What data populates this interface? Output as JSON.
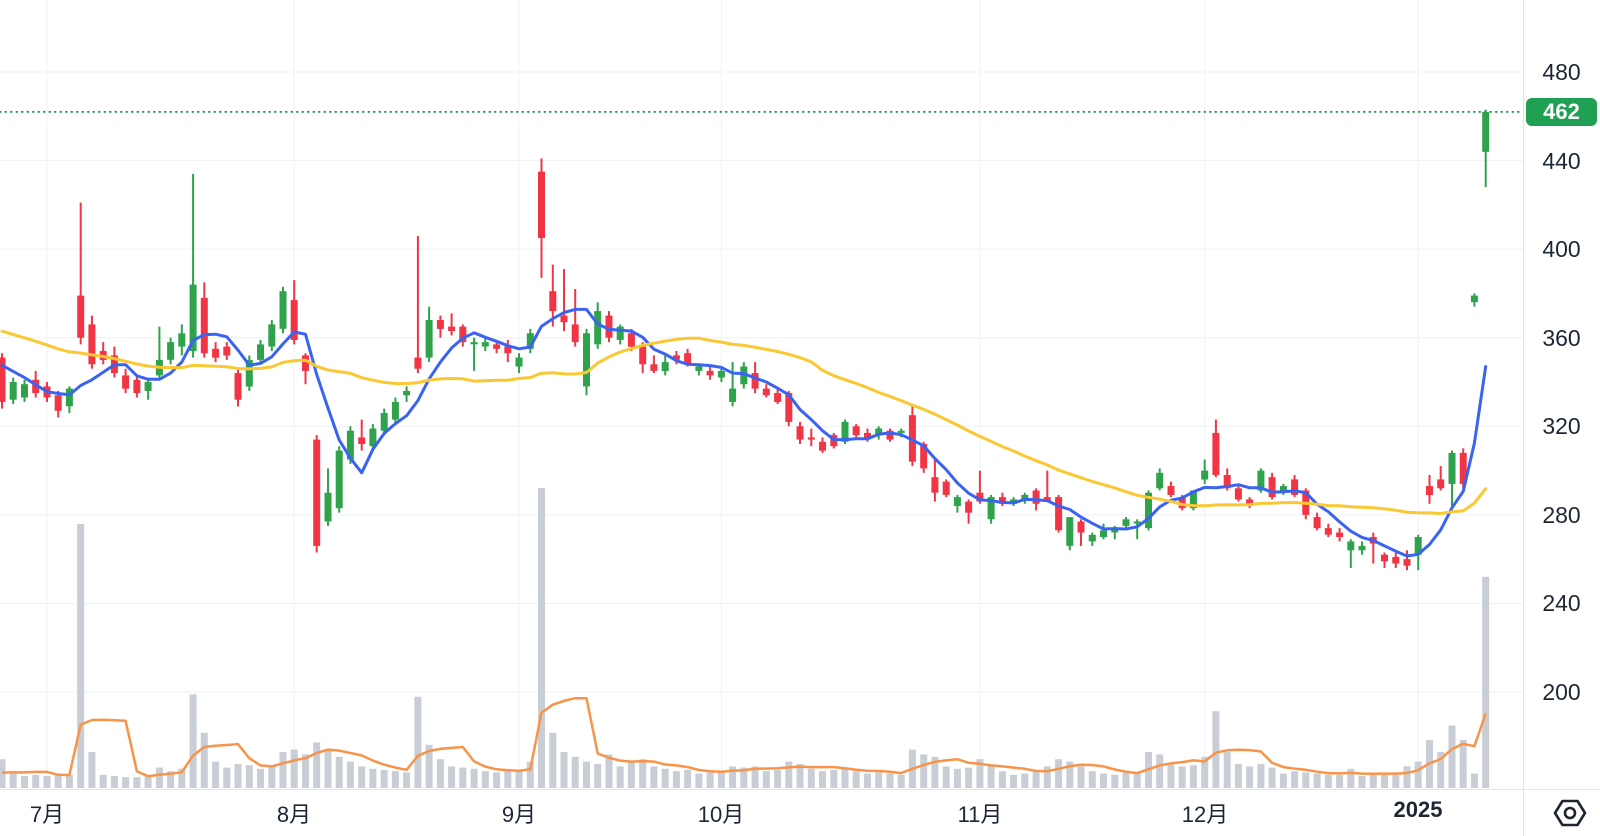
{
  "chart_data": {
    "type": "candlestick",
    "instrument_note": "daily candlestick chart with volume pane",
    "current_price": 462,
    "current_price_label": "462",
    "price_axis_ticks": [
      480,
      440,
      400,
      360,
      320,
      280,
      240,
      200
    ],
    "ylim": [
      200,
      480
    ],
    "grid": true,
    "x_axis_labels": [
      {
        "label": "7月",
        "candle_index": 4,
        "bold": false
      },
      {
        "label": "8月",
        "candle_index": 26,
        "bold": false
      },
      {
        "label": "9月",
        "candle_index": 46,
        "bold": false
      },
      {
        "label": "10月",
        "candle_index": 64,
        "bold": false
      },
      {
        "label": "11月",
        "candle_index": 87,
        "bold": false
      },
      {
        "label": "12月",
        "candle_index": 107,
        "bold": false
      },
      {
        "label": "2025",
        "candle_index": 126,
        "bold": true
      }
    ],
    "ohlcv_format": [
      "open",
      "high",
      "low",
      "close",
      "volume"
    ],
    "candles": [
      [
        351,
        353,
        328,
        331,
        120
      ],
      [
        332,
        342,
        330,
        340,
        60
      ],
      [
        333,
        341,
        331,
        339,
        50
      ],
      [
        341,
        345,
        333,
        335,
        55
      ],
      [
        338,
        340,
        331,
        333,
        50
      ],
      [
        334,
        336,
        324,
        327,
        60
      ],
      [
        329,
        338,
        326,
        337,
        55
      ],
      [
        379,
        421,
        357,
        360,
        1100
      ],
      [
        366,
        370,
        346,
        348,
        150
      ],
      [
        354,
        358,
        348,
        350,
        55
      ],
      [
        352,
        356,
        342,
        344,
        50
      ],
      [
        343,
        346,
        335,
        337,
        45
      ],
      [
        341,
        343,
        333,
        335,
        45
      ],
      [
        336,
        342,
        332,
        340,
        50
      ],
      [
        343,
        365,
        342,
        350,
        85
      ],
      [
        350,
        360,
        348,
        358,
        70
      ],
      [
        356,
        366,
        352,
        362,
        80
      ],
      [
        354,
        434,
        351,
        384,
        390
      ],
      [
        378,
        385,
        351,
        353,
        230
      ],
      [
        355,
        358,
        349,
        351,
        110
      ],
      [
        356,
        358,
        350,
        352,
        85
      ],
      [
        344,
        346,
        329,
        332,
        100
      ],
      [
        338,
        352,
        336,
        350,
        95
      ],
      [
        350,
        359,
        348,
        357,
        80
      ],
      [
        356,
        368,
        354,
        366,
        90
      ],
      [
        364,
        383,
        362,
        381,
        150
      ],
      [
        377,
        386,
        357,
        359,
        160
      ],
      [
        352,
        353,
        339,
        345,
        140
      ],
      [
        314,
        316,
        263,
        266,
        190
      ],
      [
        277,
        301,
        275,
        290,
        160
      ],
      [
        283,
        311,
        281,
        309,
        130
      ],
      [
        305,
        320,
        303,
        318,
        110
      ],
      [
        315,
        323,
        309,
        312,
        90
      ],
      [
        311,
        321,
        309,
        319,
        80
      ],
      [
        318,
        328,
        316,
        326,
        75
      ],
      [
        323,
        333,
        321,
        331,
        70
      ],
      [
        334,
        338,
        331,
        336,
        65
      ],
      [
        351,
        406,
        344,
        346,
        380
      ],
      [
        351,
        374,
        349,
        368,
        180
      ],
      [
        368,
        370,
        360,
        364,
        120
      ],
      [
        365,
        371,
        361,
        363,
        90
      ],
      [
        365,
        366,
        356,
        358,
        85
      ],
      [
        357,
        360,
        345,
        358,
        80
      ],
      [
        356,
        360,
        354,
        358,
        70
      ],
      [
        357,
        359,
        353,
        355,
        65
      ],
      [
        356,
        359,
        349,
        353,
        70
      ],
      [
        347,
        353,
        344,
        351,
        75
      ],
      [
        355,
        364,
        353,
        362,
        110
      ],
      [
        435,
        441,
        387,
        405,
        1250
      ],
      [
        381,
        393,
        365,
        372,
        230
      ],
      [
        370,
        391,
        363,
        367,
        150
      ],
      [
        366,
        382,
        356,
        358,
        130
      ],
      [
        338,
        364,
        334,
        362,
        110
      ],
      [
        357,
        376,
        355,
        372,
        100
      ],
      [
        370,
        372,
        358,
        360,
        140
      ],
      [
        359,
        366,
        357,
        365,
        90
      ],
      [
        362,
        364,
        354,
        356,
        110
      ],
      [
        356,
        358,
        344,
        348,
        120
      ],
      [
        348,
        352,
        344,
        345,
        90
      ],
      [
        345,
        352,
        343,
        349,
        80
      ],
      [
        352,
        354,
        348,
        350,
        70
      ],
      [
        353,
        355,
        347,
        348,
        75
      ],
      [
        345,
        348,
        343,
        347,
        60
      ],
      [
        345,
        347,
        341,
        343,
        65
      ],
      [
        342,
        347,
        340,
        345,
        70
      ],
      [
        331,
        349,
        329,
        337,
        90
      ],
      [
        339,
        349,
        337,
        347,
        85
      ],
      [
        344,
        349,
        335,
        337,
        90
      ],
      [
        337,
        339,
        333,
        334,
        70
      ],
      [
        335,
        337,
        330,
        331,
        75
      ],
      [
        335,
        336,
        320,
        322,
        110
      ],
      [
        320,
        322,
        312,
        314,
        100
      ],
      [
        315,
        319,
        311,
        314,
        80
      ],
      [
        313,
        315,
        308,
        309,
        70
      ],
      [
        316,
        317,
        310,
        311,
        75
      ],
      [
        313,
        323,
        312,
        322,
        85
      ],
      [
        320,
        321,
        315,
        316,
        70
      ],
      [
        317,
        319,
        313,
        314,
        60
      ],
      [
        316,
        320,
        314,
        319,
        65
      ],
      [
        318,
        319,
        313,
        314,
        60
      ],
      [
        317,
        319,
        315,
        318,
        55
      ],
      [
        325,
        330,
        302,
        304,
        160
      ],
      [
        312,
        313,
        299,
        301,
        140
      ],
      [
        297,
        305,
        286,
        290,
        130
      ],
      [
        295,
        296,
        288,
        289,
        90
      ],
      [
        284,
        289,
        281,
        288,
        80
      ],
      [
        286,
        287,
        276,
        281,
        85
      ],
      [
        290,
        300,
        285,
        286,
        120
      ],
      [
        278,
        289,
        276,
        288,
        95
      ],
      [
        288,
        290,
        284,
        285,
        70
      ],
      [
        285,
        288,
        284,
        287,
        55
      ],
      [
        287,
        290,
        285,
        289,
        60
      ],
      [
        291,
        292,
        282,
        285,
        75
      ],
      [
        288,
        300,
        286,
        286,
        90
      ],
      [
        288,
        289,
        272,
        273,
        120
      ],
      [
        266,
        279,
        264,
        279,
        110
      ],
      [
        277,
        278,
        266,
        272,
        90
      ],
      [
        268,
        272,
        266,
        271,
        70
      ],
      [
        270,
        276,
        269,
        273,
        60
      ],
      [
        272,
        275,
        269,
        274,
        55
      ],
      [
        275,
        279,
        273,
        278,
        65
      ],
      [
        277,
        278,
        269,
        277,
        60
      ],
      [
        274,
        291,
        273,
        290,
        150
      ],
      [
        292,
        301,
        291,
        299,
        140
      ],
      [
        293,
        295,
        288,
        289,
        100
      ],
      [
        288,
        289,
        282,
        283,
        90
      ],
      [
        283,
        291,
        282,
        291,
        95
      ],
      [
        296,
        305,
        294,
        300,
        130
      ],
      [
        317,
        323,
        297,
        298,
        320
      ],
      [
        298,
        301,
        291,
        292,
        150
      ],
      [
        292,
        294,
        286,
        287,
        100
      ],
      [
        287,
        288,
        283,
        284,
        90
      ],
      [
        291,
        301,
        290,
        300,
        100
      ],
      [
        297,
        299,
        287,
        288,
        85
      ],
      [
        291,
        294,
        289,
        293,
        60
      ],
      [
        296,
        298,
        288,
        289,
        70
      ],
      [
        291,
        292,
        278,
        280,
        65
      ],
      [
        279,
        281,
        273,
        274,
        60
      ],
      [
        274,
        276,
        270,
        271,
        55
      ],
      [
        272,
        274,
        268,
        270,
        55
      ],
      [
        264,
        269,
        256,
        268,
        80
      ],
      [
        264,
        268,
        262,
        266,
        50
      ],
      [
        270,
        272,
        258,
        267,
        55
      ],
      [
        262,
        263,
        256,
        259,
        60
      ],
      [
        261,
        263,
        256,
        258,
        55
      ],
      [
        260,
        264,
        255,
        257,
        90
      ],
      [
        262,
        271,
        255,
        270,
        110
      ],
      [
        293,
        298,
        285,
        289,
        200
      ],
      [
        296,
        302,
        291,
        292,
        150
      ],
      [
        294,
        309,
        283,
        308,
        260
      ],
      [
        308,
        310,
        292,
        294,
        200
      ],
      [
        376,
        380,
        374,
        379,
        60
      ],
      [
        444,
        463,
        428,
        462,
        880
      ]
    ],
    "ma_overlays": [
      {
        "name": "ma-short",
        "period": 5,
        "color": "#3a63f3"
      },
      {
        "name": "ma-long",
        "period": 25,
        "color": "#fac832"
      }
    ],
    "ma_seed_closes": [
      378,
      376,
      375,
      373,
      372,
      371,
      372,
      370,
      368,
      367,
      368,
      366,
      364,
      363,
      361,
      362,
      359,
      357,
      358,
      356,
      354,
      353,
      351,
      349
    ],
    "volume": {
      "bar_color": "#c9cdd6",
      "scale_max": 1250,
      "ma_period": 5,
      "ma_color": "#f79449",
      "ma_seed": [
        55,
        50,
        45,
        50
      ]
    },
    "colors": {
      "up": "#2fa24c",
      "down": "#f13544",
      "grid": "#eef1f6",
      "dotted_price_line": "#199a46",
      "badge_bg": "#1fa052",
      "badge_text": "#ffffff",
      "axis_text": "#1d2733",
      "separator": "#e2e5ec"
    }
  },
  "axis_icon": {
    "name": "hexagon-eye-icon"
  }
}
